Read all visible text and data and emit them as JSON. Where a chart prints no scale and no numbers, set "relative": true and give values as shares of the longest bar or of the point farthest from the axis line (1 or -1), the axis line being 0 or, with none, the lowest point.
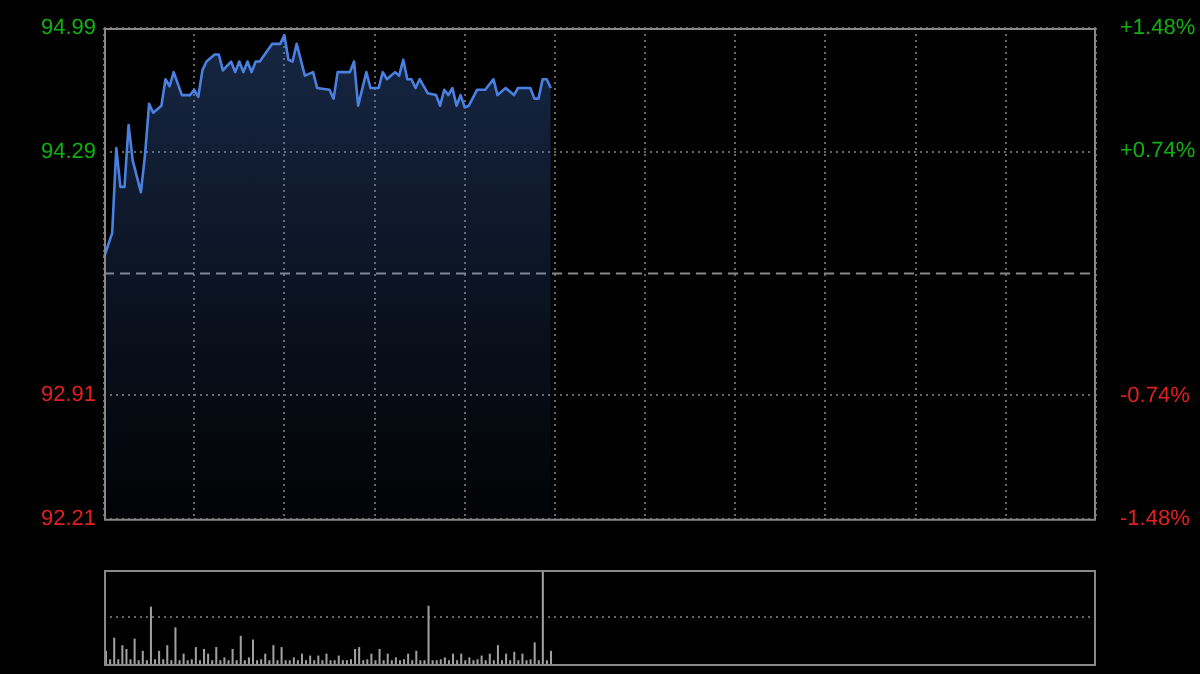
{
  "chart_data": [
    {
      "type": "area",
      "categories": [
        null,
        null,
        null,
        null,
        null,
        null,
        null,
        null,
        null,
        null,
        null,
        null,
        null,
        null,
        null,
        null,
        null,
        null,
        null,
        null,
        null,
        null,
        null,
        null,
        null,
        null,
        null,
        null,
        null,
        null,
        null,
        null,
        null,
        null,
        null,
        null,
        null,
        null,
        null,
        null,
        null,
        null,
        null,
        null,
        null,
        null,
        null,
        null,
        null,
        null,
        null,
        null,
        null,
        null,
        null,
        null,
        null,
        null,
        null,
        null,
        null,
        null,
        null,
        null,
        null,
        null,
        null,
        null,
        null,
        null,
        null,
        null,
        null,
        null,
        null,
        null,
        null,
        null,
        null,
        null,
        null,
        null,
        null,
        null,
        null,
        null,
        null,
        null,
        null,
        null,
        null,
        null,
        null,
        null,
        null,
        null,
        null,
        null,
        null,
        null,
        null,
        null,
        null,
        null,
        null,
        null,
        null,
        null,
        null,
        null,
        null,
        null,
        null,
        null,
        null,
        null,
        null,
        null,
        null,
        null,
        null,
        null,
        null,
        null,
        null,
        null,
        null,
        null,
        null,
        null,
        null,
        null,
        null,
        null,
        null,
        null,
        null,
        null,
        null,
        null,
        null,
        null,
        null,
        null,
        null,
        null,
        null,
        null,
        null,
        null,
        null,
        null,
        null,
        null,
        null,
        null,
        null,
        null,
        null,
        null,
        null,
        null,
        null,
        null,
        null,
        null,
        null,
        null,
        null,
        null,
        null,
        null,
        null,
        null,
        null,
        null,
        null,
        null,
        null,
        null,
        null,
        null,
        null,
        null,
        null,
        null,
        null,
        null,
        null,
        null,
        null,
        null,
        null,
        null,
        null,
        null,
        null,
        null,
        null,
        null,
        null,
        null,
        null,
        null,
        null,
        null,
        null,
        null,
        null,
        null,
        null,
        null,
        null,
        null,
        null,
        null,
        null,
        null,
        null,
        null,
        null,
        null,
        null,
        null,
        null,
        null,
        null,
        null,
        null,
        null,
        null,
        null,
        null,
        null,
        null,
        null,
        null,
        null,
        null,
        null,
        null,
        null,
        null
      ],
      "series": [
        {
          "color": "#4a80e0",
          "values": [
            93.69,
            null,
            93.83,
            94.31,
            94.09,
            94.09,
            94.44,
            94.24,
            null,
            94.06,
            94.27,
            94.56,
            94.51,
            null,
            94.55,
            94.7,
            94.66,
            94.74,
            null,
            94.61,
            null,
            94.61,
            94.64,
            94.6,
            94.75,
            94.8,
            null,
            94.84,
            94.84,
            94.75,
            null,
            94.8,
            94.74,
            94.8,
            94.74,
            94.8,
            94.74,
            94.8,
            94.8,
            null,
            null,
            94.9,
            null,
            94.9,
            94.95,
            94.81,
            94.8,
            94.9,
            null,
            94.72,
            null,
            94.74,
            94.65,
            null,
            null,
            94.64,
            94.59,
            94.74,
            null,
            null,
            94.74,
            94.8,
            94.55,
            null,
            94.74,
            94.65,
            null,
            94.65,
            94.74,
            94.7,
            null,
            94.74,
            94.72,
            94.81,
            94.7,
            94.7,
            94.65,
            94.7,
            null,
            94.62,
            null,
            94.61,
            94.55,
            94.64,
            94.61,
            94.65,
            94.55,
            94.61,
            94.54,
            94.55,
            null,
            94.64,
            null,
            94.64,
            null,
            94.7,
            94.61,
            null,
            94.65,
            null,
            94.61,
            94.65,
            null,
            null,
            94.65,
            94.59,
            94.59,
            94.7,
            94.7,
            94.65,
            null,
            null,
            null,
            null,
            null,
            null,
            null,
            null,
            null,
            null,
            null,
            null,
            null,
            null,
            null,
            null,
            null,
            null,
            null,
            null,
            null,
            null,
            null,
            null,
            null,
            null,
            null,
            null,
            null,
            null,
            null,
            null,
            null,
            null,
            null,
            null,
            null,
            null,
            null,
            null,
            null,
            null,
            null,
            null,
            null,
            null,
            null,
            null,
            null,
            null,
            null,
            null,
            null,
            null,
            null,
            null,
            null,
            null,
            null,
            null,
            null,
            null,
            null,
            null,
            null,
            null,
            null,
            null,
            null,
            null,
            null,
            null,
            null,
            null,
            null,
            null,
            null,
            null,
            null,
            null,
            null,
            null,
            null,
            null,
            null,
            null,
            null,
            null,
            null,
            null,
            null,
            null,
            null,
            null,
            null,
            null,
            null,
            null,
            null,
            null,
            null,
            null,
            null,
            null,
            null,
            null,
            null,
            null,
            null,
            null,
            null,
            null,
            null,
            null,
            null,
            null,
            null,
            null,
            null,
            null,
            null,
            null,
            null,
            null,
            null,
            null,
            null,
            null,
            null,
            null,
            null,
            null,
            null
          ]
        }
      ],
      "ylim": [
        92.21,
        94.99
      ],
      "yticks": [
        92.21,
        92.91,
        94.29,
        94.99
      ],
      "y2lim": [
        -1.48,
        1.48
      ],
      "y2ticks": [
        {
          "value": -1.48,
          "label": "-1.48%"
        },
        {
          "value": -0.74,
          "label": "-0.74%"
        },
        {
          "value": 0.74,
          "label": "+0.74%"
        },
        {
          "value": 1.48,
          "label": "+1.48%"
        }
      ],
      "ref_lines": [
        {
          "axis": "y",
          "value": 93.6,
          "label": null,
          "color": "#888888",
          "line_style": "dashed"
        }
      ],
      "grid": true,
      "marker": "none",
      "line_style": "solid",
      "tick_labels": "y"
    },
    {
      "type": "bar",
      "relative": true,
      "categories": [
        null,
        null,
        null,
        null,
        null,
        null,
        null,
        null,
        null,
        null,
        null,
        null,
        null,
        null,
        null,
        null,
        null,
        null,
        null,
        null,
        null,
        null,
        null,
        null,
        null,
        null,
        null,
        null,
        null,
        null,
        null,
        null,
        null,
        null,
        null,
        null,
        null,
        null,
        null,
        null,
        null,
        null,
        null,
        null,
        null,
        null,
        null,
        null,
        null,
        null,
        null,
        null,
        null,
        null,
        null,
        null,
        null,
        null,
        null,
        null,
        null,
        null,
        null,
        null,
        null,
        null,
        null,
        null,
        null,
        null,
        null,
        null,
        null,
        null,
        null,
        null,
        null,
        null,
        null,
        null,
        null,
        null,
        null,
        null,
        null,
        null,
        null,
        null,
        null,
        null,
        null,
        null,
        null,
        null,
        null,
        null,
        null,
        null,
        null,
        null,
        null,
        null,
        null,
        null,
        null,
        null,
        null,
        null,
        null,
        null,
        null,
        null,
        null,
        null,
        null,
        null,
        null,
        null,
        null,
        null,
        null,
        null,
        null,
        null,
        null,
        null,
        null,
        null,
        null,
        null,
        null,
        null,
        null,
        null,
        null,
        null,
        null,
        null,
        null,
        null,
        null,
        null,
        null,
        null,
        null,
        null,
        null,
        null,
        null,
        null,
        null,
        null,
        null,
        null,
        null,
        null,
        null,
        null,
        null,
        null,
        null,
        null,
        null,
        null,
        null,
        null,
        null,
        null,
        null,
        null,
        null,
        null,
        null,
        null,
        null,
        null,
        null,
        null,
        null,
        null,
        null,
        null,
        null,
        null,
        null,
        null,
        null,
        null,
        null,
        null,
        null,
        null,
        null,
        null,
        null,
        null,
        null,
        null,
        null,
        null,
        null,
        null,
        null,
        null,
        null,
        null,
        null,
        null,
        null,
        null,
        null,
        null,
        null,
        null,
        null,
        null,
        null,
        null,
        null,
        null,
        null,
        null,
        null,
        null,
        null,
        null,
        null,
        null,
        null,
        null,
        null,
        null,
        null,
        null,
        null,
        null,
        null,
        null,
        null,
        null,
        null,
        null,
        null
      ],
      "values": [
        0.14,
        0.05,
        0.28,
        0.05,
        0.2,
        0.16,
        0.05,
        0.27,
        0.04,
        0.14,
        0.04,
        0.61,
        0.05,
        0.14,
        0.05,
        0.2,
        0.04,
        0.39,
        0.04,
        0.11,
        0.04,
        0.05,
        0.18,
        0.04,
        0.16,
        0.11,
        0.04,
        0.18,
        0.04,
        0.07,
        0.04,
        0.16,
        0.04,
        0.3,
        0.04,
        0.07,
        0.26,
        0.04,
        0.05,
        0.11,
        0.04,
        0.2,
        0.04,
        0.18,
        0.04,
        0.04,
        0.07,
        0.04,
        0.11,
        0.04,
        0.09,
        0.04,
        0.09,
        0.04,
        0.11,
        0.04,
        0.04,
        0.09,
        0.04,
        0.04,
        0.05,
        0.16,
        0.18,
        0.04,
        0.05,
        0.11,
        0.04,
        0.16,
        0.04,
        0.11,
        0.04,
        0.07,
        0.04,
        0.05,
        0.11,
        0.04,
        0.14,
        0.04,
        0.04,
        0.62,
        0.04,
        0.04,
        0.05,
        0.07,
        0.04,
        0.11,
        0.04,
        0.11,
        0.04,
        0.07,
        0.04,
        0.05,
        0.09,
        0.04,
        0.11,
        0.04,
        0.2,
        0.04,
        0.11,
        0.04,
        0.13,
        0.04,
        0.11,
        0.04,
        0.05,
        0.23,
        0.04,
        1,
        0.04,
        0.14,
        null,
        null,
        null,
        null,
        null,
        null,
        null,
        null,
        null,
        null,
        null,
        null,
        null,
        null,
        null,
        null,
        null,
        null,
        null,
        null,
        null,
        null,
        null,
        null,
        null,
        null,
        null,
        null,
        null,
        null,
        null,
        null,
        null,
        null,
        null,
        null,
        null,
        null,
        null,
        null,
        null,
        null,
        null,
        null,
        null,
        null,
        null,
        null,
        null,
        null,
        null,
        null,
        null,
        null,
        null,
        null,
        null,
        null,
        null,
        null,
        null,
        null,
        null,
        null,
        null,
        null,
        null,
        null,
        null,
        null,
        null,
        null,
        null,
        null,
        null,
        null,
        null,
        null,
        null,
        null,
        null,
        null,
        null,
        null,
        null,
        null,
        null,
        null,
        null,
        null,
        null,
        null,
        null,
        null,
        null,
        null,
        null,
        null,
        null,
        null,
        null,
        null,
        null,
        null,
        null,
        null,
        null,
        null,
        null,
        null,
        null,
        null,
        null,
        null,
        null,
        null,
        null,
        null,
        null,
        null,
        null,
        null,
        null,
        null,
        null,
        null,
        null,
        null,
        null,
        null,
        null,
        null,
        null
      ],
      "color": "#a0a0a0",
      "ref_lines": [
        {
          "axis": "y",
          "value": 0.5,
          "label": null,
          "color": "#666666",
          "line_style": "dotted"
        }
      ],
      "tick_labels": false
    }
  ]
}
